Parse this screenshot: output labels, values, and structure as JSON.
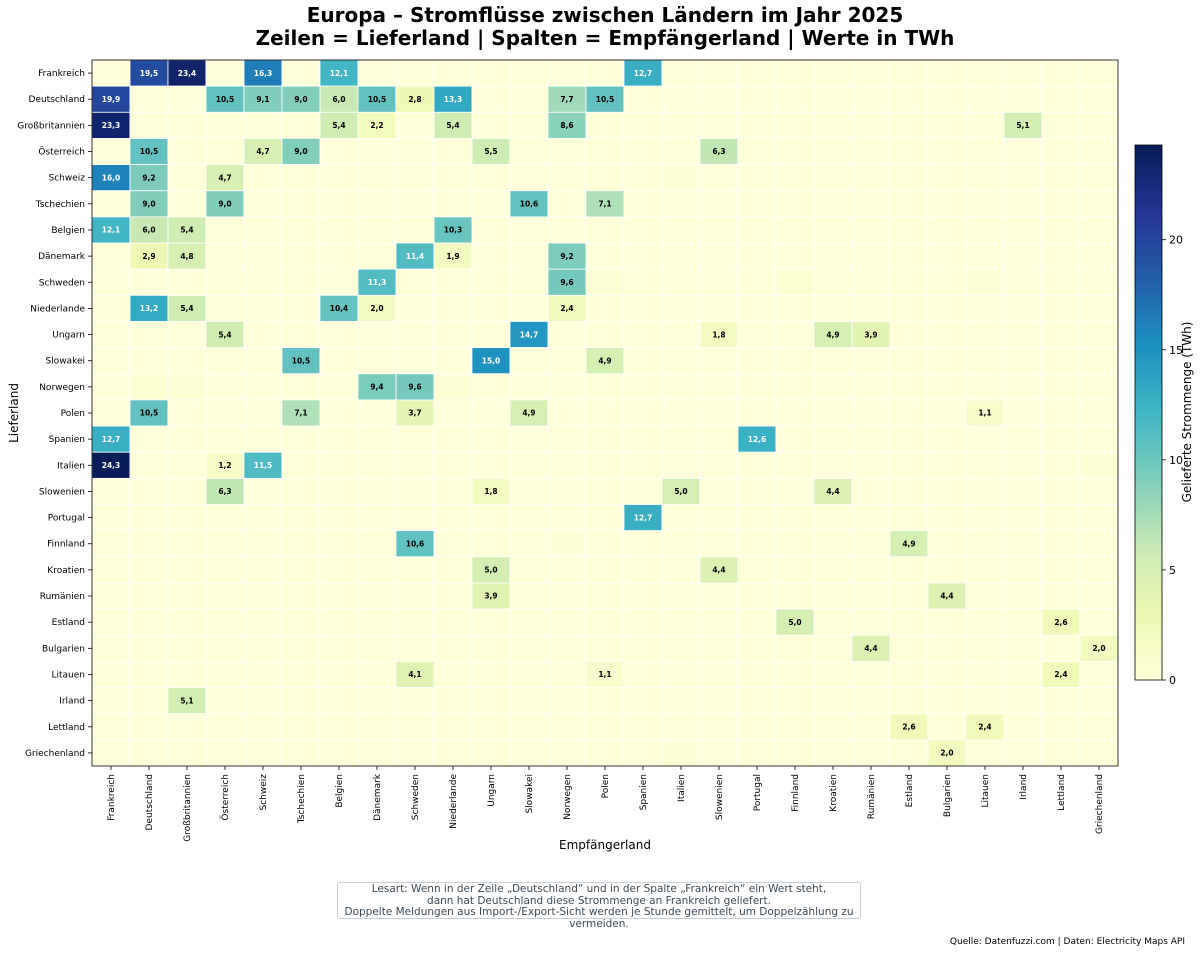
{
  "title_line1": "Europa – Stromflüsse zwischen Ländern im Jahr 2025",
  "title_line2": "Zeilen = Lieferland | Spalten = Empfängerland | Werte in TWh",
  "note": {
    "line1": "Lesart: Wenn in der Zeile „Deutschland“ und in der Spalte „Frankreich“ ein Wert steht,",
    "line2": "dann hat Deutschland diese Strommenge an Frankreich geliefert.",
    "line3": "Doppelte Meldungen aus Import-/Export-Sicht werden je Stunde gemittelt, um Doppelzählung zu vermeiden."
  },
  "source": "Quelle: Datenfuzzi.com | Daten: Electricity Maps API",
  "chart_data": {
    "type": "heatmap",
    "title": "Europa – Stromflüsse zwischen Ländern im Jahr 2025\nZeilen = Lieferland | Spalten = Empfängerland | Werte in TWh",
    "xlabel": "Empfängerland",
    "ylabel": "Lieferland",
    "colorbar_label": "Gelieferte Strommenge (TWh)",
    "colorbar_ticks": [
      0,
      5,
      10,
      15,
      20
    ],
    "vmin": 0,
    "vmax": 24.3,
    "colormap": "YlGnBu",
    "rows": [
      "Frankreich",
      "Deutschland",
      "Großbritannien",
      "Österreich",
      "Schweiz",
      "Tschechien",
      "Belgien",
      "Dänemark",
      "Schweden",
      "Niederlande",
      "Ungarn",
      "Slowakei",
      "Norwegen",
      "Polen",
      "Spanien",
      "Italien",
      "Slowenien",
      "Portugal",
      "Finnland",
      "Kroatien",
      "Rumänien",
      "Estland",
      "Bulgarien",
      "Litauen",
      "Irland",
      "Lettland",
      "Griechenland"
    ],
    "columns": [
      "Frankreich",
      "Deutschland",
      "Großbritannien",
      "Österreich",
      "Schweiz",
      "Tschechien",
      "Belgien",
      "Dänemark",
      "Schweden",
      "Niederlande",
      "Ungarn",
      "Slowakei",
      "Norwegen",
      "Polen",
      "Spanien",
      "Italien",
      "Slowenien",
      "Portugal",
      "Finnland",
      "Kroatien",
      "Rumänien",
      "Estland",
      "Bulgarien",
      "Litauen",
      "Irland",
      "Lettland",
      "Griechenland"
    ],
    "cells": [
      {
        "row": "Frankreich",
        "col": "Deutschland",
        "value": 19.5,
        "label": "19,5"
      },
      {
        "row": "Frankreich",
        "col": "Großbritannien",
        "value": 23.4,
        "label": "23,4"
      },
      {
        "row": "Frankreich",
        "col": "Schweiz",
        "value": 16.3,
        "label": "16,3"
      },
      {
        "row": "Frankreich",
        "col": "Belgien",
        "value": 12.1,
        "label": "12,1"
      },
      {
        "row": "Frankreich",
        "col": "Spanien",
        "value": 12.7,
        "label": "12,7"
      },
      {
        "row": "Deutschland",
        "col": "Frankreich",
        "value": 19.9,
        "label": "19,9"
      },
      {
        "row": "Deutschland",
        "col": "Österreich",
        "value": 10.5,
        "label": "10,5"
      },
      {
        "row": "Deutschland",
        "col": "Schweiz",
        "value": 9.1,
        "label": "9,1"
      },
      {
        "row": "Deutschland",
        "col": "Tschechien",
        "value": 9.0,
        "label": "9,0"
      },
      {
        "row": "Deutschland",
        "col": "Belgien",
        "value": 6.0,
        "label": "6,0"
      },
      {
        "row": "Deutschland",
        "col": "Dänemark",
        "value": 10.5,
        "label": "10,5"
      },
      {
        "row": "Deutschland",
        "col": "Schweden",
        "value": 2.8,
        "label": "2,8"
      },
      {
        "row": "Deutschland",
        "col": "Niederlande",
        "value": 13.3,
        "label": "13,3"
      },
      {
        "row": "Deutschland",
        "col": "Norwegen",
        "value": 7.7,
        "label": "7,7"
      },
      {
        "row": "Deutschland",
        "col": "Polen",
        "value": 10.5,
        "label": "10,5"
      },
      {
        "row": "Großbritannien",
        "col": "Frankreich",
        "value": 23.3,
        "label": "23,3"
      },
      {
        "row": "Großbritannien",
        "col": "Belgien",
        "value": 5.4,
        "label": "5,4"
      },
      {
        "row": "Großbritannien",
        "col": "Dänemark",
        "value": 2.2,
        "label": "2,2"
      },
      {
        "row": "Großbritannien",
        "col": "Niederlande",
        "value": 5.4,
        "label": "5,4"
      },
      {
        "row": "Großbritannien",
        "col": "Norwegen",
        "value": 8.6,
        "label": "8,6"
      },
      {
        "row": "Großbritannien",
        "col": "Irland",
        "value": 5.1,
        "label": "5,1"
      },
      {
        "row": "Österreich",
        "col": "Deutschland",
        "value": 10.5,
        "label": "10,5"
      },
      {
        "row": "Österreich",
        "col": "Schweiz",
        "value": 4.7,
        "label": "4,7"
      },
      {
        "row": "Österreich",
        "col": "Tschechien",
        "value": 9.0,
        "label": "9,0"
      },
      {
        "row": "Österreich",
        "col": "Ungarn",
        "value": 5.5,
        "label": "5,5"
      },
      {
        "row": "Österreich",
        "col": "Slowenien",
        "value": 6.3,
        "label": "6,3"
      },
      {
        "row": "Schweiz",
        "col": "Frankreich",
        "value": 16.0,
        "label": "16,0"
      },
      {
        "row": "Schweiz",
        "col": "Deutschland",
        "value": 9.2,
        "label": "9,2"
      },
      {
        "row": "Schweiz",
        "col": "Österreich",
        "value": 4.7,
        "label": "4,7"
      },
      {
        "row": "Schweiz",
        "col": "Italien",
        "value": 0.25,
        "label": ""
      },
      {
        "row": "Tschechien",
        "col": "Deutschland",
        "value": 9.0,
        "label": "9,0"
      },
      {
        "row": "Tschechien",
        "col": "Österreich",
        "value": 9.0,
        "label": "9,0"
      },
      {
        "row": "Tschechien",
        "col": "Slowakei",
        "value": 10.6,
        "label": "10,6"
      },
      {
        "row": "Tschechien",
        "col": "Polen",
        "value": 7.1,
        "label": "7,1"
      },
      {
        "row": "Belgien",
        "col": "Frankreich",
        "value": 12.1,
        "label": "12,1"
      },
      {
        "row": "Belgien",
        "col": "Deutschland",
        "value": 6.0,
        "label": "6,0"
      },
      {
        "row": "Belgien",
        "col": "Großbritannien",
        "value": 5.4,
        "label": "5,4"
      },
      {
        "row": "Belgien",
        "col": "Niederlande",
        "value": 10.3,
        "label": "10,3"
      },
      {
        "row": "Dänemark",
        "col": "Deutschland",
        "value": 2.9,
        "label": "2,9"
      },
      {
        "row": "Dänemark",
        "col": "Großbritannien",
        "value": 4.8,
        "label": "4,8"
      },
      {
        "row": "Dänemark",
        "col": "Schweden",
        "value": 11.4,
        "label": "11,4"
      },
      {
        "row": "Dänemark",
        "col": "Niederlande",
        "value": 1.9,
        "label": "1,9"
      },
      {
        "row": "Dänemark",
        "col": "Norwegen",
        "value": 9.2,
        "label": "9,2"
      },
      {
        "row": "Schweden",
        "col": "Dänemark",
        "value": 11.3,
        "label": "11,3"
      },
      {
        "row": "Schweden",
        "col": "Norwegen",
        "value": 9.6,
        "label": "9,6"
      },
      {
        "row": "Schweden",
        "col": "Polen",
        "value": 0.3,
        "label": ""
      },
      {
        "row": "Schweden",
        "col": "Finnland",
        "value": 0.5,
        "label": ""
      },
      {
        "row": "Schweden",
        "col": "Litauen",
        "value": 0.3,
        "label": ""
      },
      {
        "row": "Niederlande",
        "col": "Deutschland",
        "value": 13.2,
        "label": "13,2"
      },
      {
        "row": "Niederlande",
        "col": "Großbritannien",
        "value": 5.4,
        "label": "5,4"
      },
      {
        "row": "Niederlande",
        "col": "Belgien",
        "value": 10.4,
        "label": "10,4"
      },
      {
        "row": "Niederlande",
        "col": "Dänemark",
        "value": 2.0,
        "label": "2,0"
      },
      {
        "row": "Niederlande",
        "col": "Norwegen",
        "value": 2.4,
        "label": "2,4"
      },
      {
        "row": "Ungarn",
        "col": "Österreich",
        "value": 5.4,
        "label": "5,4"
      },
      {
        "row": "Ungarn",
        "col": "Slowakei",
        "value": 14.7,
        "label": "14,7"
      },
      {
        "row": "Ungarn",
        "col": "Slowenien",
        "value": 1.8,
        "label": "1,8"
      },
      {
        "row": "Ungarn",
        "col": "Kroatien",
        "value": 4.9,
        "label": "4,9"
      },
      {
        "row": "Ungarn",
        "col": "Rumänien",
        "value": 3.9,
        "label": "3,9"
      },
      {
        "row": "Slowakei",
        "col": "Tschechien",
        "value": 10.5,
        "label": "10,5"
      },
      {
        "row": "Slowakei",
        "col": "Ungarn",
        "value": 15.0,
        "label": "15,0"
      },
      {
        "row": "Slowakei",
        "col": "Polen",
        "value": 4.9,
        "label": "4,9"
      },
      {
        "row": "Norwegen",
        "col": "Deutschland",
        "value": 0.5,
        "label": ""
      },
      {
        "row": "Norwegen",
        "col": "Großbritannien",
        "value": 0.4,
        "label": ""
      },
      {
        "row": "Norwegen",
        "col": "Dänemark",
        "value": 9.4,
        "label": "9,4"
      },
      {
        "row": "Norwegen",
        "col": "Schweden",
        "value": 9.6,
        "label": "9,6"
      },
      {
        "row": "Norwegen",
        "col": "Niederlande",
        "value": 0.3,
        "label": ""
      },
      {
        "row": "Polen",
        "col": "Deutschland",
        "value": 10.5,
        "label": "10,5"
      },
      {
        "row": "Polen",
        "col": "Tschechien",
        "value": 7.1,
        "label": "7,1"
      },
      {
        "row": "Polen",
        "col": "Schweden",
        "value": 3.7,
        "label": "3,7"
      },
      {
        "row": "Polen",
        "col": "Slowakei",
        "value": 4.9,
        "label": "4,9"
      },
      {
        "row": "Polen",
        "col": "Litauen",
        "value": 1.1,
        "label": "1,1"
      },
      {
        "row": "Spanien",
        "col": "Frankreich",
        "value": 12.7,
        "label": "12,7"
      },
      {
        "row": "Spanien",
        "col": "Portugal",
        "value": 12.6,
        "label": "12,6"
      },
      {
        "row": "Italien",
        "col": "Frankreich",
        "value": 24.3,
        "label": "24,3"
      },
      {
        "row": "Italien",
        "col": "Österreich",
        "value": 1.2,
        "label": "1,2"
      },
      {
        "row": "Italien",
        "col": "Schweiz",
        "value": 11.5,
        "label": "11,5"
      },
      {
        "row": "Italien",
        "col": "Griechenland",
        "value": 0.4,
        "label": ""
      },
      {
        "row": "Slowenien",
        "col": "Österreich",
        "value": 6.3,
        "label": "6,3"
      },
      {
        "row": "Slowenien",
        "col": "Ungarn",
        "value": 1.8,
        "label": "1,8"
      },
      {
        "row": "Slowenien",
        "col": "Italien",
        "value": 5.0,
        "label": "5,0"
      },
      {
        "row": "Slowenien",
        "col": "Kroatien",
        "value": 4.4,
        "label": "4,4"
      },
      {
        "row": "Portugal",
        "col": "Spanien",
        "value": 12.7,
        "label": "12,7"
      },
      {
        "row": "Finnland",
        "col": "Schweden",
        "value": 10.6,
        "label": "10,6"
      },
      {
        "row": "Finnland",
        "col": "Norwegen",
        "value": 0.3,
        "label": ""
      },
      {
        "row": "Finnland",
        "col": "Estland",
        "value": 4.9,
        "label": "4,9"
      },
      {
        "row": "Kroatien",
        "col": "Ungarn",
        "value": 5.0,
        "label": "5,0"
      },
      {
        "row": "Kroatien",
        "col": "Slowenien",
        "value": 4.4,
        "label": "4,4"
      },
      {
        "row": "Rumänien",
        "col": "Ungarn",
        "value": 3.9,
        "label": "3,9"
      },
      {
        "row": "Rumänien",
        "col": "Bulgarien",
        "value": 4.4,
        "label": "4,4"
      },
      {
        "row": "Estland",
        "col": "Finnland",
        "value": 5.0,
        "label": "5,0"
      },
      {
        "row": "Estland",
        "col": "Lettland",
        "value": 2.6,
        "label": "2,6"
      },
      {
        "row": "Bulgarien",
        "col": "Rumänien",
        "value": 4.4,
        "label": "4,4"
      },
      {
        "row": "Bulgarien",
        "col": "Griechenland",
        "value": 2.0,
        "label": "2,0"
      },
      {
        "row": "Litauen",
        "col": "Schweden",
        "value": 4.1,
        "label": "4,1"
      },
      {
        "row": "Litauen",
        "col": "Polen",
        "value": 1.1,
        "label": "1,1"
      },
      {
        "row": "Litauen",
        "col": "Lettland",
        "value": 2.4,
        "label": "2,4"
      },
      {
        "row": "Irland",
        "col": "Großbritannien",
        "value": 5.1,
        "label": "5,1"
      },
      {
        "row": "Lettland",
        "col": "Estland",
        "value": 2.6,
        "label": "2,6"
      },
      {
        "row": "Lettland",
        "col": "Litauen",
        "value": 2.4,
        "label": "2,4"
      },
      {
        "row": "Griechenland",
        "col": "Italien",
        "value": 0.3,
        "label": ""
      },
      {
        "row": "Griechenland",
        "col": "Bulgarien",
        "value": 2.0,
        "label": "2,0"
      }
    ]
  }
}
